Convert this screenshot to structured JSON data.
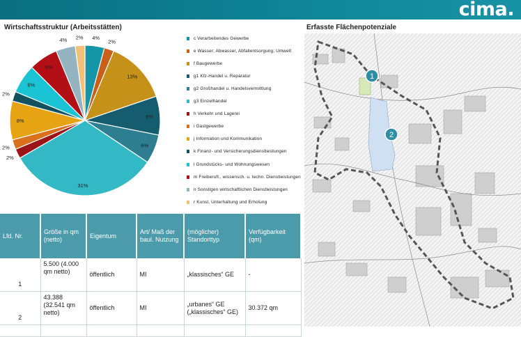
{
  "header": {
    "logo_text": "cima."
  },
  "left_title": "Wirtschaftsstruktur (Arbeitsstätten)",
  "right_title": "Erfasste Flächenpotenziale",
  "chart_data": {
    "type": "pie",
    "title": "Wirtschaftsstruktur (Arbeitsstätten)",
    "unit": "%",
    "slices": [
      {
        "label": "c Verarbeitendes Gewerbe",
        "value": 4,
        "value_label": "4%",
        "color": "#1496a8"
      },
      {
        "label": "e Wasser; Abwasser, Abfallentsorgung; Umwelt",
        "value": 2,
        "value_label": "2%",
        "color": "#c8601a"
      },
      {
        "label": "f Baugewerbe",
        "value": 13,
        "value_label": "13%",
        "color": "#c59118"
      },
      {
        "label": "g1 Kfz-Handel u. Reparatur",
        "value": 8,
        "value_label": "8%",
        "color": "#155d6e"
      },
      {
        "label": "g2 Großhandel u. Handelsvermittlung",
        "value": 6,
        "value_label": "6%",
        "color": "#2e7e92"
      },
      {
        "label": "g3 Einzelhandel",
        "value": 31,
        "value_label": "31%",
        "color": "#33b8c6"
      },
      {
        "label": "h Verkehr und Lagerei",
        "value": 2,
        "value_label": "2%",
        "color": "#9c1418"
      },
      {
        "label": "i Gastgewerbe",
        "value": 2,
        "value_label": "2%",
        "color": "#d8701c"
      },
      {
        "label": "j Information und Kommunikation",
        "value": 8,
        "value_label": "8%",
        "color": "#e6a414"
      },
      {
        "label": "k Finanz- und Versicherungsdienstleistungen",
        "value": 2,
        "value_label": "2%",
        "color": "#12515f"
      },
      {
        "label": "l Grundstücks- und Wohnungswesen",
        "value": 6,
        "value_label": "6%",
        "color": "#1bc4d4"
      },
      {
        "label": "m Freiberufl., wissensch. u. techn. Dienstleistungen",
        "value": 6,
        "value_label": "6%",
        "color": "#b30f17"
      },
      {
        "label": "n Sonstigen wirtschaftlichen Dienstleistungen",
        "value": 4,
        "value_label": "4%",
        "color": "#93b4c0"
      },
      {
        "label": "r Kunst, Unterhaltung und Erholung",
        "value": 2,
        "value_label": "2%",
        "color": "#f3c07a"
      }
    ]
  },
  "table": {
    "headers": [
      "Lfd. Nr.",
      "Größe in qm (netto)",
      "Eigentum",
      "Art/ Maß der baul. Nutzung",
      "(möglicher) Standorttyp",
      "Verfügbarkeit (qm)"
    ],
    "rows": [
      {
        "nr": "1",
        "groesse": "5.500 (4.000 qm netto)",
        "eigentum": "öffentlich",
        "art": "MI",
        "typ": "„klassisches“ GE",
        "verf": "-"
      },
      {
        "nr": "2",
        "groesse": "43.388 (32.541 qm netto)",
        "eigentum": "öffentlich",
        "art": "MI",
        "typ": "„urbanes“ GE („klassisches“ GE)",
        "verf": "30.372 qm"
      }
    ]
  },
  "map": {
    "markers": [
      "1",
      "2"
    ]
  }
}
